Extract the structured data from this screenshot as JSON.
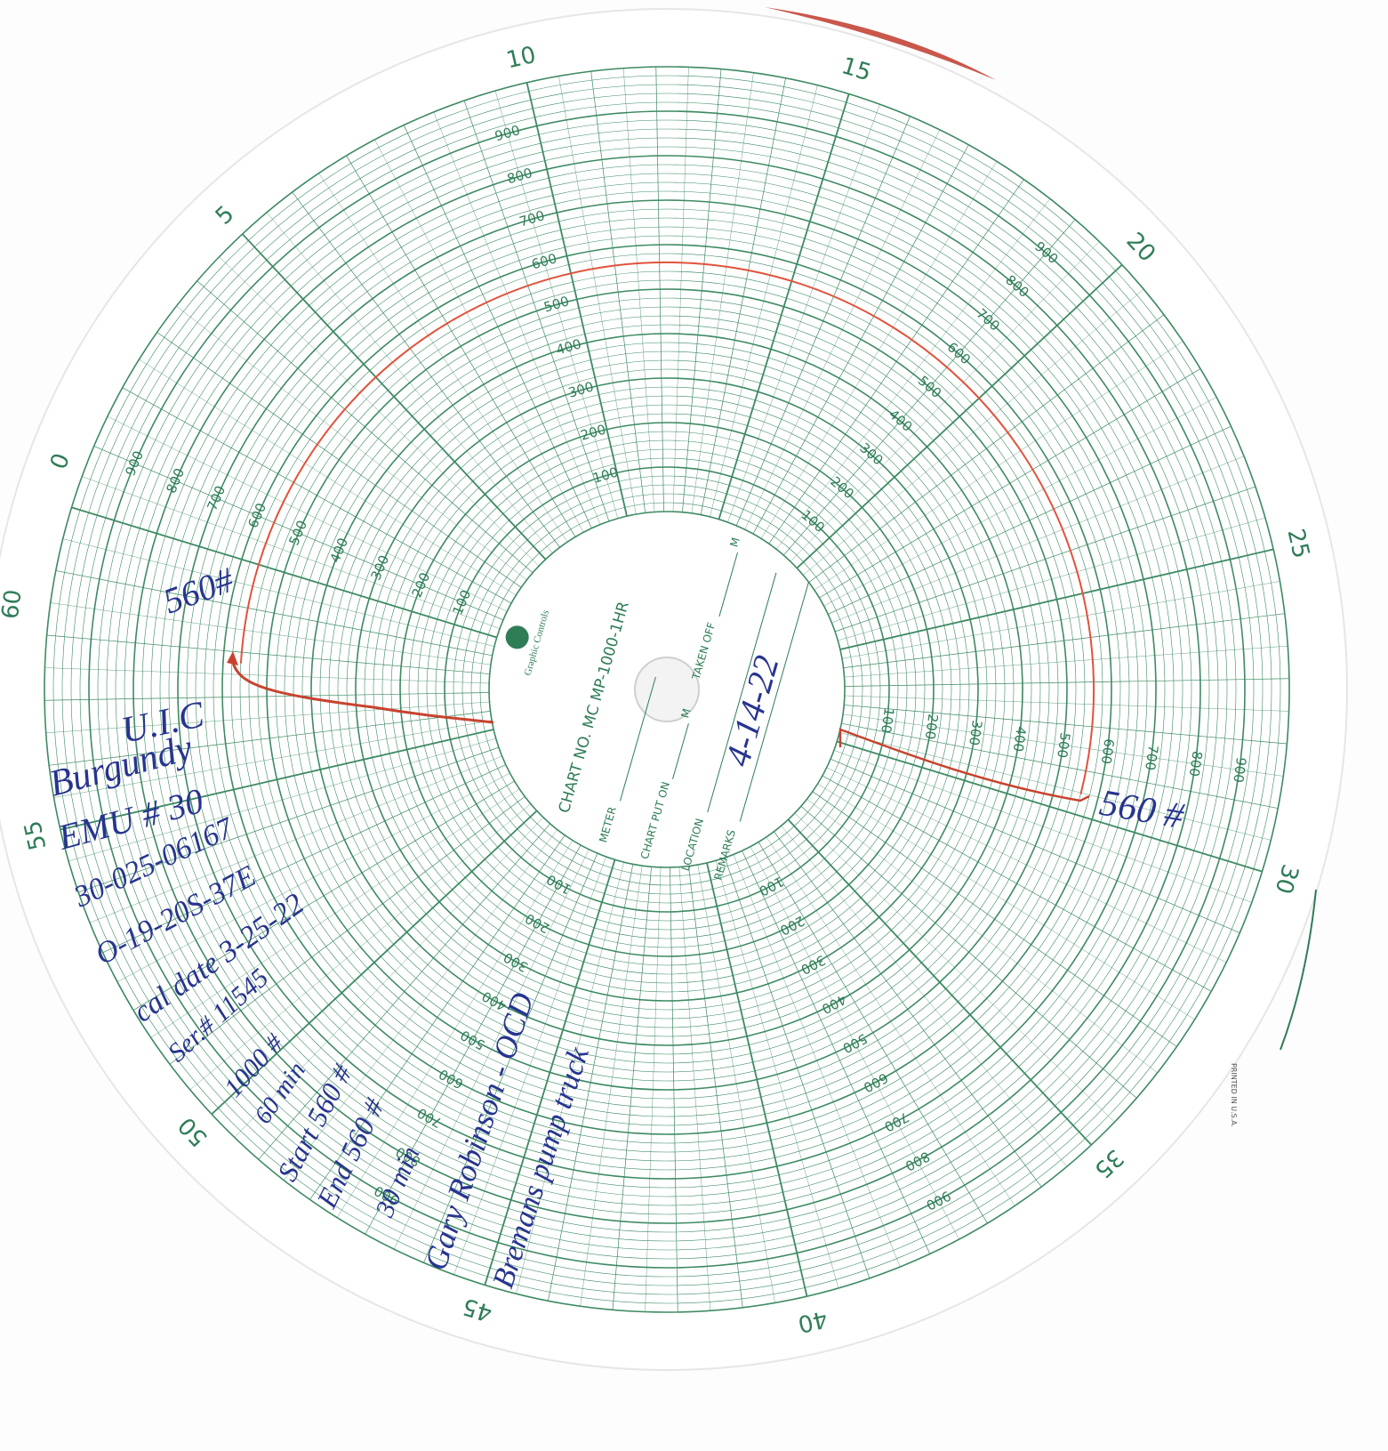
{
  "minute_labels": [
    "0",
    "5",
    "10",
    "15",
    "20",
    "25",
    "30",
    "35",
    "40",
    "45",
    "50",
    "55",
    "60"
  ],
  "pressure_labels": [
    "100",
    "200",
    "300",
    "400",
    "500",
    "600",
    "700",
    "800",
    "900"
  ],
  "center": {
    "brand": "Graphic Controls",
    "chart_no": "CHART NO. MC MP-1000-1HR",
    "meter": "METER",
    "chart_put_on": "CHART PUT ON",
    "m": "M",
    "location": "LOCATION",
    "remarks": "REMARKS",
    "taken_off": "TAKEN OFF"
  },
  "remarks_entry": "4-14-22",
  "notes": [
    "560#",
    "U.I.C",
    "Burgundy",
    "EMU # 30",
    "30-025-06167",
    "O-19-20S-37E",
    "cal date 3-25-22",
    "Ser.# 11545",
    "1000 #",
    "60 min",
    "Start 560 #",
    "End 560 #",
    "30 min",
    "Gary Robinson - OCD",
    "Bremans pump truck",
    "560 #"
  ],
  "printed": "PRINTED IN U.S.A."
}
